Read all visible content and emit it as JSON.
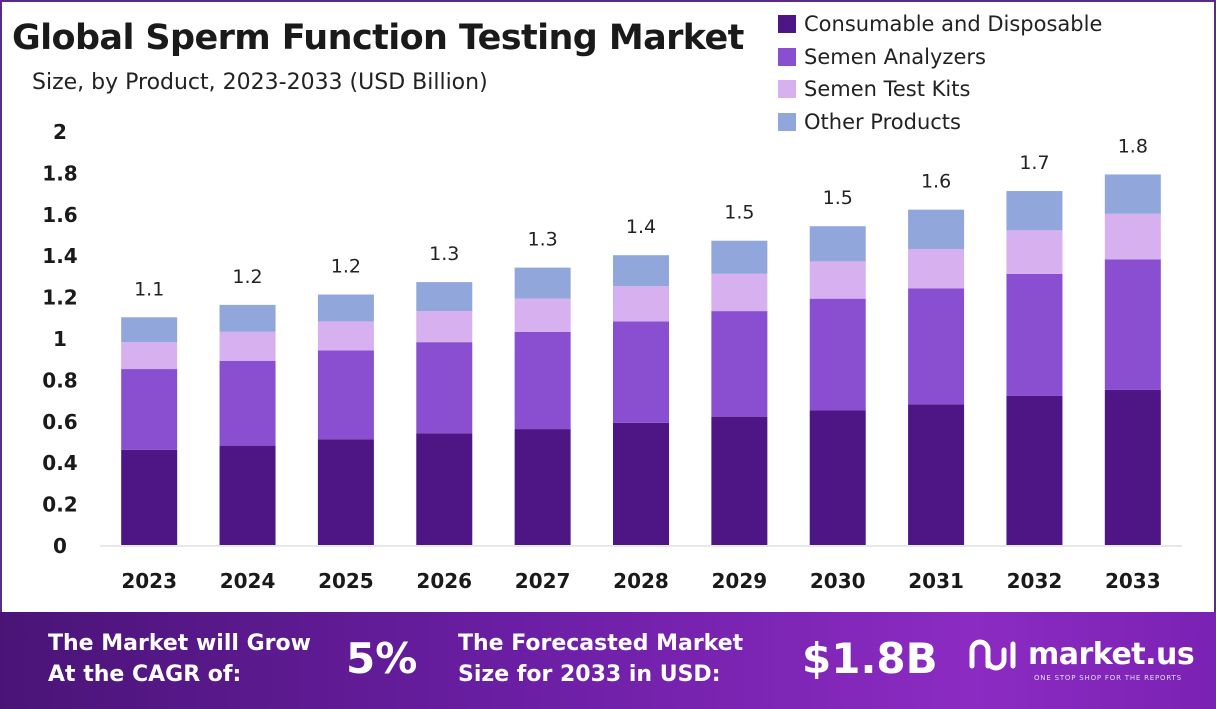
{
  "chart_data": {
    "type": "bar",
    "stacked": true,
    "title": "Global Sperm Function Testing Market",
    "subtitle": "Size, by Product, 2023-2033 (USD Billion)",
    "categories": [
      "2023",
      "2024",
      "2025",
      "2026",
      "2027",
      "2028",
      "2029",
      "2030",
      "2031",
      "2032",
      "2033"
    ],
    "series": [
      {
        "name": "Consumable and Disposable",
        "color": "#4e1585",
        "values": [
          0.46,
          0.48,
          0.51,
          0.54,
          0.56,
          0.59,
          0.62,
          0.65,
          0.68,
          0.72,
          0.75
        ]
      },
      {
        "name": "Semen Analyzers",
        "color": "#8a4fd0",
        "values": [
          0.39,
          0.41,
          0.43,
          0.44,
          0.47,
          0.49,
          0.51,
          0.54,
          0.56,
          0.59,
          0.63
        ]
      },
      {
        "name": "Semen Test Kits",
        "color": "#d6b0ef",
        "values": [
          0.13,
          0.14,
          0.14,
          0.15,
          0.16,
          0.17,
          0.18,
          0.18,
          0.19,
          0.21,
          0.22
        ]
      },
      {
        "name": "Other Products",
        "color": "#91a7dc",
        "values": [
          0.12,
          0.13,
          0.13,
          0.14,
          0.15,
          0.15,
          0.16,
          0.17,
          0.19,
          0.19,
          0.19
        ]
      }
    ],
    "totals_labels": [
      "1.1",
      "1.2",
      "1.2",
      "1.3",
      "1.3",
      "1.4",
      "1.5",
      "1.5",
      "1.6",
      "1.7",
      "1.8"
    ],
    "ylim": [
      0,
      2
    ],
    "yticks": [
      "0",
      "0.2",
      "0.4",
      "0.6",
      "0.8",
      "1",
      "1.2",
      "1.4",
      "1.6",
      "1.8",
      "2"
    ],
    "xlabel": "",
    "ylabel": "",
    "grid": false,
    "legend_position": "top-right"
  },
  "footer": {
    "cagr_text_line1": "The Market will Grow",
    "cagr_text_line2": "At the CAGR of:",
    "cagr_value": "5%",
    "forecast_text_line1": "The Forecasted Market",
    "forecast_text_line2": "Size for 2033 in USD:",
    "forecast_value": "$1.8B",
    "brand_name": "market.us",
    "brand_tagline": "ONE STOP SHOP FOR THE REPORTS"
  }
}
